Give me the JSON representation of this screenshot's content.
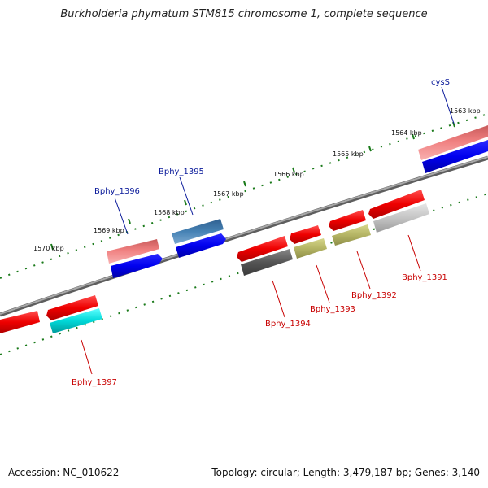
{
  "title": "Burkholderia phymatum STM815 chromosome 1, complete sequence",
  "footer": {
    "accession": "Accession: NC_010622",
    "summary": "Topology: circular; Length: 3,479,187 bp; Genes: 3,140"
  },
  "scale_labels": [
    "1563 kbp",
    "1564 kbp",
    "1565 kbp",
    "1566 kbp",
    "1567 kbp",
    "1568 kbp",
    "1569 kbp",
    "1570 kbp"
  ],
  "gene_labels": {
    "cysS": "cysS",
    "Bphy_1391": "Bphy_1391",
    "Bphy_1392": "Bphy_1392",
    "Bphy_1393": "Bphy_1393",
    "Bphy_1394": "Bphy_1394",
    "Bphy_1395": "Bphy_1395",
    "Bphy_1396": "Bphy_1396",
    "Bphy_1397": "Bphy_1397"
  },
  "colors": {
    "backbone": "#808080",
    "tick": "#1a7a1a",
    "forward_label": "#0a1a9a",
    "reverse_label": "#c80000"
  }
}
